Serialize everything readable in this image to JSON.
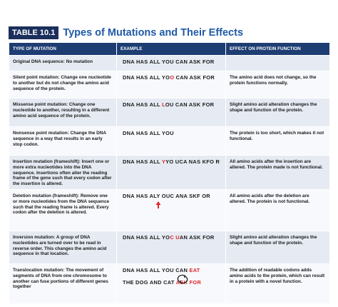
{
  "header": {
    "badge": "TABLE 10.1",
    "title": "Types of Mutations and Their Effects"
  },
  "table": {
    "headers": [
      "TYPE OF MUTATION",
      "EXAMPLE",
      "EFFECT ON PROTEIN FUNCTION"
    ],
    "rows": [
      {
        "type": "Original DNA sequence:",
        "description": "No mutation",
        "example": [
          [
            {
              "text": "DNA HAS ALL YOU CAN ASK FOR"
            }
          ]
        ]
      },
      {
        "type": "Silent point mutation:",
        "description": "Change one nucleotide to another but do not change the amino acid sequence of the protein.",
        "example": [
          [
            {
              "text": "DNA HAS ALL YO"
            },
            {
              "text": "O",
              "color": "#e3262b"
            },
            {
              "text": " CAN ASK FOR"
            }
          ]
        ],
        "effect": "The amino acid does not change, so the protein functions normally."
      },
      {
        "type": "Missense point mutation:",
        "description": "Change one nucleotide to another, resulting in a different amino acid sequence of the protein.",
        "example": [
          [
            {
              "text": "DNA HAS ALL "
            },
            {
              "text": "L",
              "color": "#e3262b"
            },
            {
              "text": "OU CAN ASK FOR"
            }
          ]
        ],
        "effect": "Slight amino acid alteration changes the shape and function of the protein."
      },
      {
        "type": "Nonsense point mutation:",
        "description": "Change the DNA sequence in a way that results in an early stop codon.",
        "example": [
          [
            {
              "text": "DNA HAS ALL YOU"
            }
          ]
        ],
        "effect": "The protein is too short, which makes it not functional."
      },
      {
        "type": "Insertion mutation (frameshift):",
        "description": "Insert one or more extra nucleotides into the DNA sequence. Insertions often alter the reading frame of the gene such that every codon after the insertion is altered.",
        "example": [
          [
            {
              "text": "DNA HAS ALL "
            },
            {
              "text": "Y",
              "color": "#e3262b"
            },
            {
              "text": "YO UCA NAS KFO R"
            }
          ]
        ],
        "effect": "All amino acids after the insertion are altered. The protein made is not functional."
      },
      {
        "type": "Deletion mutation (frameshift):",
        "description": "Remove one or more nucleotides from the DNA sequence such that the reading frame is altered. Every codon after the deletion is altered.",
        "example": [
          [
            {
              "text": "DNA HAS ALY OUC ANA SKF OR"
            }
          ]
        ],
        "effect": "All amino acids after the deletion are altered. The protein is not functional."
      },
      {
        "type": "Inversion mutation:",
        "description": "A group of DNA nucleotides are turned over to be read in reverse order. This changes the amino acid sequence in that location.",
        "example": [
          [
            {
              "text": "DNA HAS ALL YO"
            },
            {
              "text": "C",
              "color": "#e3262b"
            },
            {
              "text": " "
            },
            {
              "text": "U",
              "color": "#e3262b"
            },
            {
              "text": "AN ASK FOR"
            }
          ]
        ],
        "effect": "Slight amino acid alteration changes the shape and function of the protein."
      },
      {
        "type": "Translocation mutation:",
        "description": "The movement of segments of DNA from one chromosome to another can fuse portions of different genes together",
        "example": [
          [
            {
              "text": "DNA HAS ALL YOU CAN "
            },
            {
              "text": "EAT",
              "color": "#e3262b"
            }
          ],
          [
            {
              "text": "THE DOG AND CAT "
            },
            {
              "text": "ASK FOR",
              "color": "#e3262b"
            }
          ]
        ],
        "effect": "The addition of readable codons adds amino acids to the protein, which can result in a protein with a novel function."
      }
    ]
  }
}
